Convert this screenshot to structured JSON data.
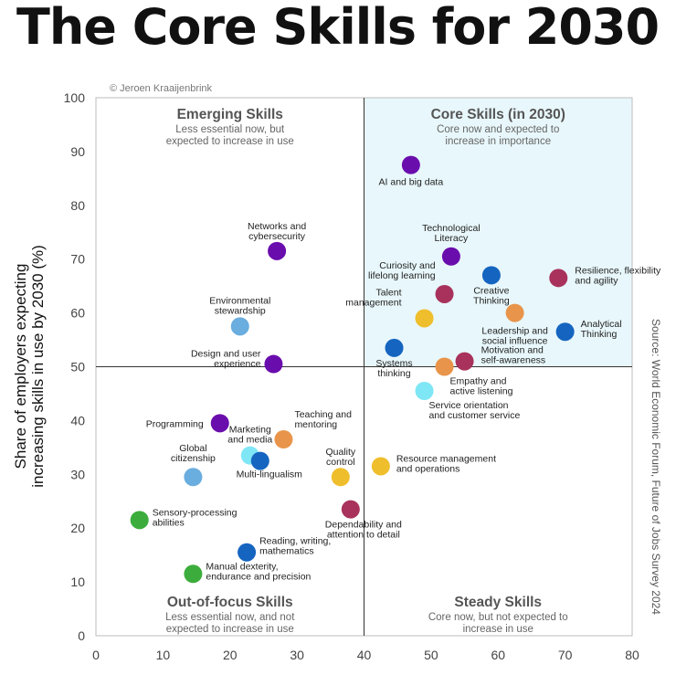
{
  "chart_data": {
    "type": "scatter",
    "title": "The Core Skills for 2030",
    "credit": "© Jeroen Kraaijenbrink",
    "ylabel_line1": "Share of employers expecting",
    "ylabel_line2": "increasing skills in use by 2030 (%)",
    "source": "Source: World Economic Forum, Future of Jobs Survey 2024",
    "xlim": [
      0,
      80
    ],
    "ylim": [
      0,
      100
    ],
    "x_ticks": [
      0,
      10,
      20,
      30,
      40,
      50,
      60,
      70,
      80
    ],
    "y_ticks": [
      0,
      10,
      20,
      30,
      40,
      50,
      60,
      70,
      80,
      90,
      100
    ],
    "threshold": {
      "x": 40,
      "y": 50
    },
    "highlight_color": "#e8f7fb",
    "quadrants": [
      {
        "id": "emerging",
        "title": "Emerging Skills",
        "sub1": "Less essential now, but",
        "sub2": "expected to increase in use"
      },
      {
        "id": "core",
        "title": "Core Skills (in 2030)",
        "sub1": "Core now and expected to",
        "sub2": "increase in importance"
      },
      {
        "id": "out-of-focus",
        "title": "Out-of-focus Skills",
        "sub1": "Less essential now, and not",
        "sub2": "expected to increase in use"
      },
      {
        "id": "steady",
        "title": "Steady Skills",
        "sub1": "Core now, but not expected to",
        "sub2": "increase in use"
      }
    ],
    "colors": {
      "purple": "#6a0dad",
      "blue": "#1565c0",
      "lightblue": "#6aaddf",
      "cyan": "#7fe6f5",
      "orange": "#e8954b",
      "yellow": "#efbe2c",
      "maroon": "#a8325c",
      "green": "#3cad3c"
    },
    "points": [
      {
        "x": 47,
        "y": 87.5,
        "color": "purple",
        "label": [
          "AI and big data"
        ]
      },
      {
        "x": 53,
        "y": 70.5,
        "color": "purple",
        "label": [
          "Technological",
          "Literacy"
        ]
      },
      {
        "x": 59,
        "y": 67,
        "color": "blue",
        "label": [
          "Creative",
          "Thinking"
        ]
      },
      {
        "x": 69,
        "y": 66.5,
        "color": "maroon",
        "label": [
          "Resilience, flexibility",
          "and agility"
        ]
      },
      {
        "x": 52,
        "y": 63.5,
        "color": "maroon",
        "label": [
          "Curiosity and",
          "lifelong learning"
        ]
      },
      {
        "x": 49,
        "y": 59,
        "color": "yellow",
        "label": [
          "Talent",
          "management"
        ]
      },
      {
        "x": 62.5,
        "y": 60,
        "color": "orange",
        "label": [
          "Leadership and",
          "social influence"
        ]
      },
      {
        "x": 70,
        "y": 56.5,
        "color": "blue",
        "label": [
          "Analytical",
          "Thinking"
        ]
      },
      {
        "x": 44.5,
        "y": 53.5,
        "color": "blue",
        "label": [
          "Systems",
          "thinking"
        ]
      },
      {
        "x": 55,
        "y": 51,
        "color": "maroon",
        "label": [
          "Motivation and",
          "self-awareness"
        ]
      },
      {
        "x": 52,
        "y": 50,
        "color": "orange",
        "label": [
          "Empathy and",
          "active listening"
        ]
      },
      {
        "x": 49,
        "y": 45.5,
        "color": "cyan",
        "label": [
          "Service orientation",
          "and customer service"
        ]
      },
      {
        "x": 27,
        "y": 71.5,
        "color": "purple",
        "label": [
          "Networks and",
          "cybersecurity"
        ]
      },
      {
        "x": 21.5,
        "y": 57.5,
        "color": "lightblue",
        "label": [
          "Environmental",
          "stewardship"
        ]
      },
      {
        "x": 26.5,
        "y": 50.5,
        "color": "purple",
        "label": [
          "Design and user",
          "experience"
        ]
      },
      {
        "x": 18.5,
        "y": 39.5,
        "color": "purple",
        "label": [
          "Programming"
        ]
      },
      {
        "x": 23,
        "y": 33.5,
        "color": "cyan",
        "label": [
          "Marketing",
          "and media"
        ]
      },
      {
        "x": 24.5,
        "y": 32.5,
        "color": "blue",
        "label": [
          "Multi-lingualism"
        ]
      },
      {
        "x": 28,
        "y": 36.5,
        "color": "orange",
        "label": [
          "Teaching and",
          "mentoring"
        ]
      },
      {
        "x": 14.5,
        "y": 29.5,
        "color": "lightblue",
        "label": [
          "Global",
          "citizenship"
        ]
      },
      {
        "x": 36.5,
        "y": 29.5,
        "color": "yellow",
        "label": [
          "Quality",
          "control"
        ]
      },
      {
        "x": 42.5,
        "y": 31.5,
        "color": "yellow",
        "label": [
          "Resource management",
          "and operations"
        ]
      },
      {
        "x": 6.5,
        "y": 21.5,
        "color": "green",
        "label": [
          "Sensory-processing",
          "abilities"
        ]
      },
      {
        "x": 38,
        "y": 23.5,
        "color": "maroon",
        "label": [
          "Dependability and",
          "attention to detail"
        ]
      },
      {
        "x": 22.5,
        "y": 15.5,
        "color": "blue",
        "label": [
          "Reading, writing,",
          "mathematics"
        ]
      },
      {
        "x": 14.5,
        "y": 11.5,
        "color": "green",
        "label": [
          "Manual dexterity,",
          "endurance and precision"
        ]
      }
    ]
  }
}
